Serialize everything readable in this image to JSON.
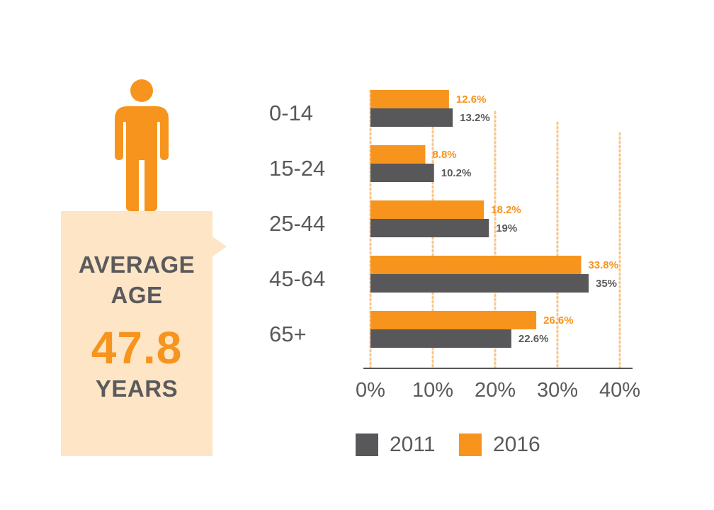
{
  "colors": {
    "series_2011": "#58585a",
    "series_2016": "#f7941d",
    "callout_bg": "#fde5c6",
    "text": "#5a5a5c",
    "grid": "#f8c68e"
  },
  "icons": {
    "person": "person-icon"
  },
  "callout": {
    "line1": "AVERAGE",
    "line2": "AGE",
    "value": "47.8",
    "unit": "YEARS"
  },
  "chart_data": {
    "type": "bar",
    "orientation": "horizontal",
    "categories": [
      "0-14",
      "15-24",
      "25-44",
      "45-64",
      "65+"
    ],
    "series": [
      {
        "name": "2016",
        "values": [
          12.6,
          8.8,
          18.2,
          33.8,
          26.6
        ],
        "labels": [
          "12.6%",
          "8.8%",
          "18.2%",
          "33.8%",
          "26.6%"
        ],
        "color": "#f7941d"
      },
      {
        "name": "2011",
        "values": [
          13.2,
          10.2,
          19,
          35,
          22.6
        ],
        "labels": [
          "13.2%",
          "10.2%",
          "19%",
          "35%",
          "22.6%"
        ],
        "color": "#58585a"
      }
    ],
    "x_ticks": [
      0,
      10,
      20,
      30,
      40
    ],
    "x_tick_labels": [
      "0%",
      "10%",
      "20%",
      "30%",
      "40%"
    ],
    "xlim": [
      0,
      40
    ],
    "grid": "vertical dotted",
    "legend": {
      "position": "bottom",
      "entries": [
        "2011",
        "2016"
      ]
    }
  }
}
